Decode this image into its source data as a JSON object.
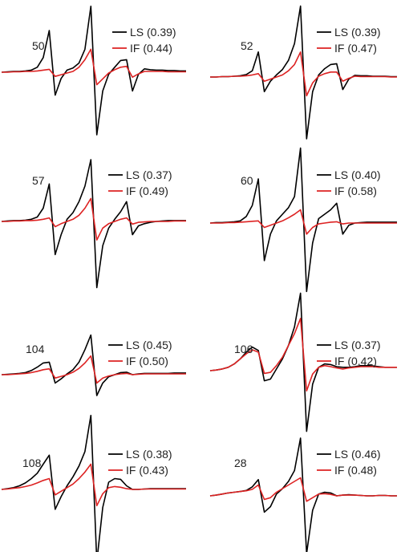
{
  "chart_data": [
    {
      "type": "line",
      "label": "50",
      "series": [
        {
          "name": "LS (0.39)",
          "color": "#000000",
          "y": [
            0,
            0.01,
            0.02,
            0.02,
            0.03,
            0.05,
            0.12,
            0.35,
            1.0,
            -0.55,
            -0.15,
            0.05,
            0.1,
            0.22,
            0.55,
            1.58,
            -1.5,
            -0.45,
            -0.05,
            0.12,
            0.28,
            0.3,
            -0.45,
            -0.05,
            0.08,
            0.06,
            0.05,
            0.05,
            0.04,
            0.04,
            0.03,
            0.03
          ]
        },
        {
          "name": "IF (0.44)",
          "color": "#dd2222",
          "y": [
            0,
            0,
            0.01,
            0.01,
            0.02,
            0.02,
            0.03,
            0.05,
            0.07,
            -0.1,
            -0.06,
            -0.02,
            0.02,
            0.12,
            0.3,
            0.55,
            -0.3,
            -0.16,
            -0.02,
            0.06,
            0.12,
            0.14,
            -0.12,
            -0.04,
            0.02,
            0.02,
            0.02,
            0.02,
            0.01,
            0.01,
            0.01,
            0.01
          ]
        }
      ]
    },
    {
      "type": "line",
      "label": "52",
      "series": [
        {
          "name": "LS (0.39)",
          "color": "#000000",
          "y": [
            0,
            0,
            0.01,
            0.01,
            0.02,
            0.03,
            0.06,
            0.15,
            0.6,
            -0.35,
            -0.1,
            0.05,
            0.18,
            0.4,
            0.8,
            1.7,
            -1.48,
            -0.35,
            0.05,
            0.2,
            0.3,
            0.32,
            -0.3,
            -0.05,
            0.04,
            0.03,
            0.03,
            0.02,
            0.02,
            0.02,
            0.01,
            0.01
          ]
        },
        {
          "name": "IF (0.47)",
          "color": "#dd2222",
          "y": [
            0,
            0,
            0.01,
            0.01,
            0.02,
            0.02,
            0.03,
            0.05,
            0.08,
            -0.1,
            -0.05,
            0.0,
            0.05,
            0.15,
            0.3,
            0.6,
            -0.45,
            -0.14,
            0.02,
            0.08,
            0.12,
            0.12,
            -0.1,
            -0.03,
            0.02,
            0.01,
            0.01,
            0.01,
            0.01,
            0.01,
            0.0,
            0.0
          ]
        }
      ]
    },
    {
      "type": "line",
      "label": "57",
      "series": [
        {
          "name": "LS (0.37)",
          "color": "#000000",
          "y": [
            0,
            0.01,
            0.02,
            0.02,
            0.03,
            0.05,
            0.1,
            0.3,
            0.85,
            -0.75,
            -0.3,
            0.05,
            0.2,
            0.45,
            0.8,
            1.4,
            -1.5,
            -0.55,
            -0.15,
            0.05,
            0.22,
            0.45,
            -0.3,
            -0.1,
            -0.05,
            -0.02,
            0.0,
            0.01,
            0.02,
            0.02,
            0.02,
            0.02
          ]
        },
        {
          "name": "IF (0.49)",
          "color": "#dd2222",
          "y": [
            0,
            0,
            0.01,
            0.01,
            0.02,
            0.02,
            0.03,
            0.05,
            0.08,
            -0.12,
            -0.05,
            0.0,
            0.05,
            0.14,
            0.3,
            0.52,
            -0.42,
            -0.15,
            -0.05,
            0.0,
            0.05,
            0.08,
            -0.06,
            -0.02,
            -0.01,
            0.0,
            0.0,
            0.0,
            0.0,
            0.01,
            0.01,
            0.01
          ]
        }
      ]
    },
    {
      "type": "line",
      "label": "60",
      "series": [
        {
          "name": "LS (0.40)",
          "color": "#000000",
          "y": [
            0,
            0.01,
            0.01,
            0.02,
            0.03,
            0.05,
            0.15,
            0.4,
            1.0,
            -0.85,
            -0.25,
            0.05,
            0.2,
            0.35,
            0.6,
            1.7,
            -1.55,
            -0.45,
            0.1,
            0.2,
            0.3,
            0.45,
            -0.25,
            -0.05,
            0.0,
            0.01,
            0.02,
            0.02,
            0.02,
            0.02,
            0.02,
            0.02
          ]
        },
        {
          "name": "IF (0.58)",
          "color": "#dd2222",
          "y": [
            0,
            0,
            0.0,
            0.01,
            0.01,
            0.02,
            0.03,
            0.04,
            0.05,
            -0.1,
            -0.05,
            0.0,
            0.05,
            0.12,
            0.2,
            0.3,
            -0.25,
            -0.1,
            -0.02,
            0.0,
            0.02,
            0.03,
            -0.02,
            0.0,
            0.0,
            0.0,
            0.0,
            0.0,
            0.0,
            0.0,
            0.0,
            0.0
          ]
        }
      ]
    },
    {
      "type": "line",
      "label": "104",
      "series": [
        {
          "name": "LS (0.45)",
          "color": "#000000",
          "y": [
            0,
            0.01,
            0.02,
            0.03,
            0.05,
            0.1,
            0.18,
            0.28,
            0.3,
            -0.2,
            -0.1,
            0.02,
            0.12,
            0.3,
            0.6,
            0.95,
            -0.5,
            -0.2,
            -0.05,
            0.0,
            0.05,
            0.06,
            0.0,
            0.02,
            0.03,
            0.03,
            0.03,
            0.03,
            0.03,
            0.04,
            0.04,
            0.04
          ]
        },
        {
          "name": "IF (0.50)",
          "color": "#dd2222",
          "y": [
            0,
            0,
            0.01,
            0.02,
            0.03,
            0.05,
            0.08,
            0.12,
            0.14,
            -0.08,
            -0.04,
            0.0,
            0.06,
            0.15,
            0.28,
            0.45,
            -0.2,
            -0.08,
            -0.03,
            0.0,
            0.02,
            0.03,
            0.0,
            0.01,
            0.02,
            0.02,
            0.02,
            0.02,
            0.02,
            0.02,
            0.02,
            0.02
          ]
        }
      ]
    },
    {
      "type": "line",
      "label": "106",
      "series": [
        {
          "name": "LS (0.37)",
          "color": "#000000",
          "y": [
            0,
            0.02,
            0.05,
            0.1,
            0.2,
            0.35,
            0.55,
            0.7,
            0.6,
            -0.3,
            -0.25,
            0.05,
            0.35,
            0.75,
            1.3,
            2.3,
            -1.8,
            -0.4,
            0.1,
            0.2,
            0.18,
            0.12,
            0.1,
            0.1,
            0.12,
            0.15,
            0.15,
            0.14,
            0.12,
            0.1,
            0.1,
            0.1
          ]
        },
        {
          "name": "IF (0.42)",
          "color": "#dd2222",
          "y": [
            0,
            0.02,
            0.05,
            0.1,
            0.2,
            0.35,
            0.5,
            0.62,
            0.55,
            -0.08,
            -0.05,
            0.15,
            0.4,
            0.75,
            1.1,
            1.55,
            -0.6,
            -0.1,
            0.1,
            0.15,
            0.12,
            0.08,
            0.05,
            0.08,
            0.1,
            0.12,
            0.12,
            0.12,
            0.1,
            0.1,
            0.1,
            0.1
          ]
        }
      ]
    },
    {
      "type": "line",
      "label": "108",
      "series": [
        {
          "name": "LS (0.38)",
          "color": "#000000",
          "y": [
            0,
            0.02,
            0.05,
            0.1,
            0.18,
            0.3,
            0.45,
            0.7,
            0.95,
            -0.55,
            -0.2,
            0.1,
            0.35,
            0.65,
            1.05,
            2.05,
            -2.0,
            -0.5,
            0.2,
            0.3,
            0.28,
            0.1,
            0.0,
            0.0,
            0.01,
            0.02,
            0.02,
            0.02,
            0.02,
            0.02,
            0.02,
            0.02
          ]
        },
        {
          "name": "IF (0.43)",
          "color": "#dd2222",
          "y": [
            0,
            0.01,
            0.03,
            0.05,
            0.08,
            0.12,
            0.18,
            0.25,
            0.3,
            -0.15,
            -0.05,
            0.05,
            0.15,
            0.3,
            0.48,
            0.7,
            -0.45,
            -0.12,
            0.05,
            0.08,
            0.06,
            0.02,
            0.0,
            0.0,
            0.01,
            0.01,
            0.01,
            0.01,
            0.01,
            0.01,
            0.01,
            0.01
          ]
        }
      ]
    },
    {
      "type": "line",
      "label": "28",
      "series": [
        {
          "name": "LS (0.46)",
          "color": "#000000",
          "y": [
            0,
            0.02,
            0.05,
            0.08,
            0.1,
            0.12,
            0.15,
            0.25,
            0.45,
            -0.45,
            -0.3,
            0.05,
            0.2,
            0.4,
            0.7,
            1.6,
            -1.6,
            -0.4,
            0.05,
            0.1,
            0.08,
            0.0,
            0.02,
            0.03,
            0.02,
            0.01,
            0.0,
            0.0,
            0.01,
            0.01,
            0.0,
            0.0
          ]
        },
        {
          "name": "IF (0.48)",
          "color": "#dd2222",
          "y": [
            0,
            0.02,
            0.05,
            0.08,
            0.1,
            0.12,
            0.14,
            0.18,
            0.3,
            -0.1,
            -0.05,
            0.1,
            0.2,
            0.3,
            0.4,
            0.5,
            -0.15,
            -0.05,
            0.05,
            0.06,
            0.04,
            0.0,
            0.02,
            0.02,
            0.02,
            0.01,
            0.0,
            0.0,
            0.01,
            0.01,
            0.0,
            0.0
          ]
        }
      ]
    }
  ]
}
